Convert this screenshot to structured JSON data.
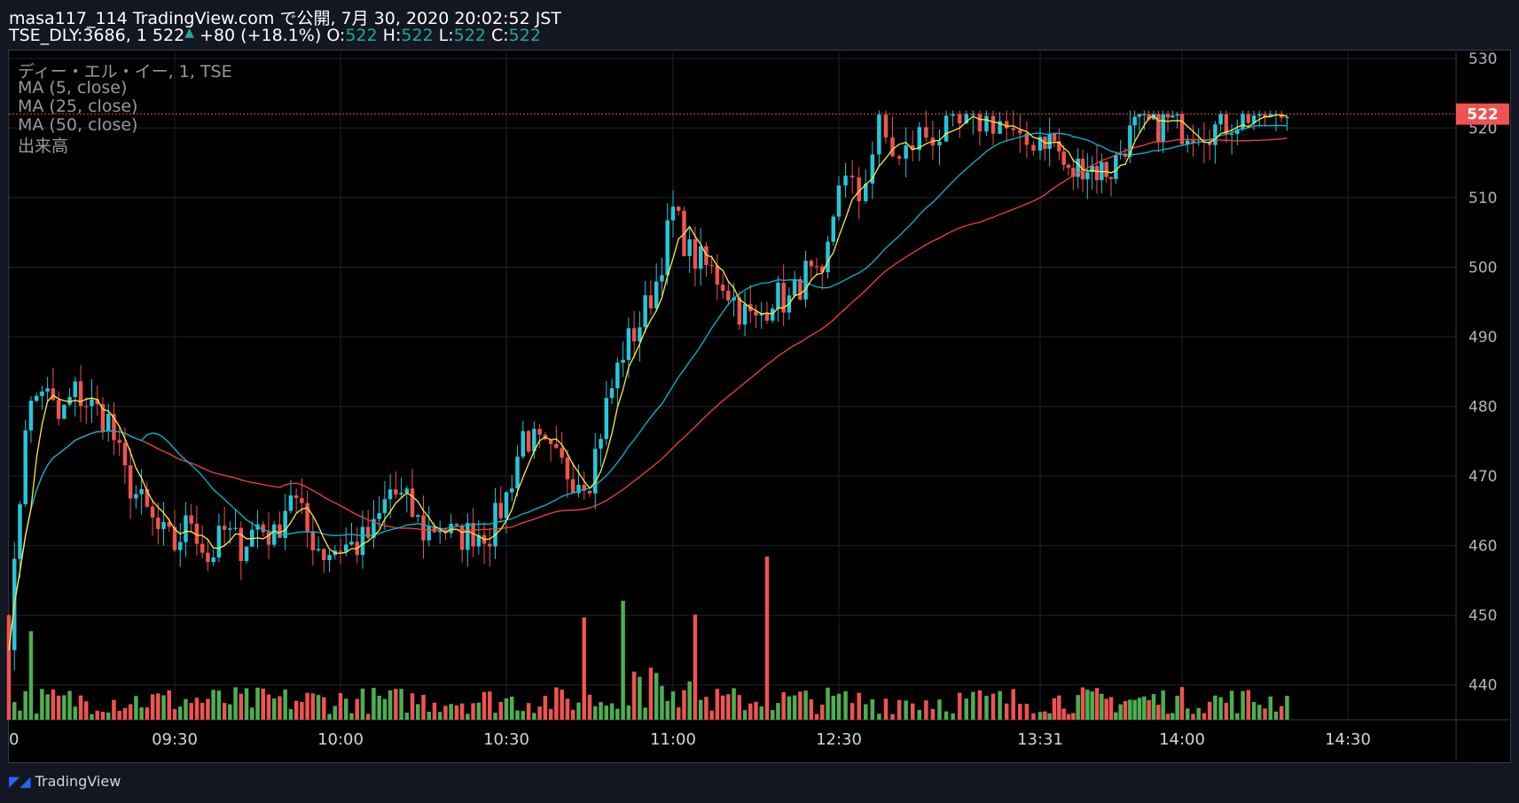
{
  "header": {
    "line1": "masa117_114 TradingView.com で公開, 7月 30, 2020 20:02:52 JST",
    "symbol": "TSE_DLY:3686, 1",
    "last": "522",
    "up_arrow": "▲",
    "change": "+80 (+18.1%)",
    "o_label": "O:",
    "o_val": "522",
    "h_label": "H:",
    "h_val": "522",
    "l_label": "L:",
    "l_val": "522",
    "c_label": "C:",
    "c_val": "522"
  },
  "legend": {
    "title": "ディー・エル・イー, 1, TSE",
    "ma5": "MA (5, close)",
    "ma25": "MA (25, close)",
    "ma50": "MA (50, close)",
    "volume": "出来高"
  },
  "footer": {
    "brand": "TradingView",
    "icon": "tradingview-logo-icon"
  },
  "colors": {
    "up": "#26a69a",
    "down": "#ef5350",
    "candle_up": "#26c6da",
    "candle_down": "#ef5350",
    "vol_up": "#4caf50",
    "vol_down": "#ef5350",
    "ma5": "#ffeb3b",
    "ma25": "#00bcd4",
    "ma50": "#f44336",
    "grid": "#1f2230"
  },
  "chart_data": {
    "type": "candlestick",
    "interval": "1 minute",
    "ylim": [
      435,
      531
    ],
    "y_ticks": [
      440,
      450,
      460,
      470,
      480,
      490,
      500,
      510,
      520,
      530
    ],
    "x_tick_labels": [
      "0",
      "09:30",
      "10:00",
      "10:30",
      "11:00",
      "12:30",
      "13:31",
      "14:00",
      "14:30"
    ],
    "x_tick_minutes": [
      0,
      30,
      60,
      90,
      120,
      150,
      180,
      210,
      240
    ],
    "last_price_label": "522",
    "last_price": 522,
    "close_anchors": [
      [
        0,
        445
      ],
      [
        3,
        478
      ],
      [
        6,
        483
      ],
      [
        9,
        478
      ],
      [
        12,
        482
      ],
      [
        15,
        480
      ],
      [
        18,
        478
      ],
      [
        21,
        470
      ],
      [
        24,
        466
      ],
      [
        27,
        462
      ],
      [
        30,
        460
      ],
      [
        33,
        464
      ],
      [
        36,
        458
      ],
      [
        39,
        462
      ],
      [
        42,
        460
      ],
      [
        45,
        463
      ],
      [
        48,
        461
      ],
      [
        51,
        468
      ],
      [
        54,
        462
      ],
      [
        57,
        459
      ],
      [
        60,
        460
      ],
      [
        63,
        460
      ],
      [
        66,
        462
      ],
      [
        69,
        468
      ],
      [
        72,
        466
      ],
      [
        75,
        462
      ],
      [
        78,
        463
      ],
      [
        81,
        461
      ],
      [
        84,
        462
      ],
      [
        87,
        462
      ],
      [
        90,
        467
      ],
      [
        93,
        476
      ],
      [
        96,
        474
      ],
      [
        99,
        472
      ],
      [
        102,
        470
      ],
      [
        105,
        470
      ],
      [
        108,
        480
      ],
      [
        111,
        488
      ],
      [
        114,
        492
      ],
      [
        117,
        498
      ],
      [
        120,
        508
      ],
      [
        123,
        502
      ],
      [
        126,
        500
      ],
      [
        129,
        498
      ],
      [
        132,
        494
      ],
      [
        135,
        492
      ],
      [
        138,
        496
      ],
      [
        141,
        495
      ],
      [
        144,
        499
      ],
      [
        147,
        497
      ],
      [
        150,
        513
      ],
      [
        153,
        510
      ],
      [
        156,
        520
      ],
      [
        159,
        515
      ],
      [
        162,
        519
      ],
      [
        165,
        519
      ],
      [
        168,
        520
      ],
      [
        171,
        521
      ],
      [
        174,
        521
      ],
      [
        177,
        517
      ],
      [
        180,
        519
      ],
      [
        183,
        518
      ],
      [
        186,
        513
      ],
      [
        189,
        515
      ],
      [
        192,
        514
      ],
      [
        195,
        514
      ],
      [
        198,
        518
      ],
      [
        201,
        521
      ],
      [
        204,
        520
      ],
      [
        207,
        521
      ],
      [
        210,
        520
      ],
      [
        213,
        520
      ],
      [
        216,
        520
      ],
      [
        219,
        521
      ],
      [
        222,
        522
      ]
    ],
    "volume_spikes": [
      [
        137,
        59
      ],
      [
        111,
        43
      ],
      [
        124,
        38
      ],
      [
        104,
        37
      ],
      [
        0,
        33
      ],
      [
        4,
        32
      ]
    ],
    "series": [
      {
        "name": "MA (5, close)",
        "period": 5
      },
      {
        "name": "MA (25, close)",
        "period": 25
      },
      {
        "name": "MA (50, close)",
        "period": 50
      },
      {
        "name": "出来高"
      }
    ]
  }
}
